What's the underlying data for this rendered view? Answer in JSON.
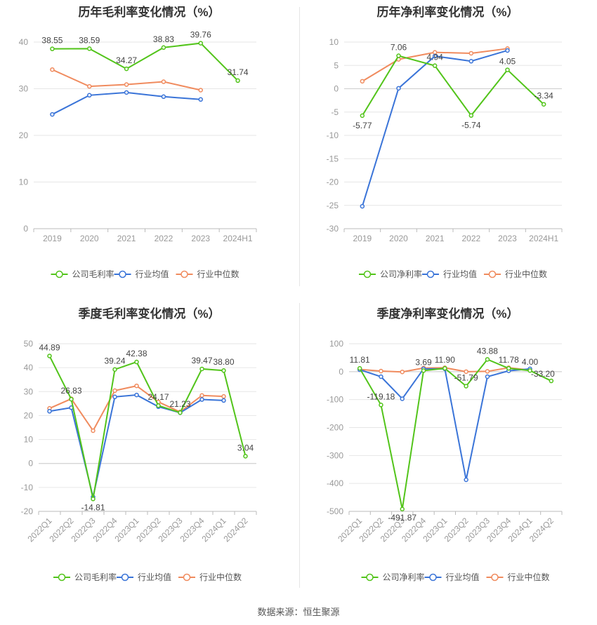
{
  "source_label": "数据来源：恒生聚源",
  "colors": {
    "company": "#52c41a",
    "industry_avg": "#3a74d8",
    "industry_median": "#f08b5e"
  },
  "chart_data": [
    {
      "type": "line",
      "title": "历年毛利率变化情况（%）",
      "categories": [
        "2019",
        "2020",
        "2021",
        "2022",
        "2023",
        "2024H1"
      ],
      "ylim": [
        0,
        40
      ],
      "yticks": [
        0,
        10,
        20,
        30,
        40
      ],
      "grid": true,
      "legend_position": "bottom",
      "rotate_xlabels": false,
      "series": [
        {
          "name": "公司毛利率",
          "values": [
            38.55,
            38.59,
            34.27,
            38.83,
            39.76,
            31.74
          ],
          "labels": [
            "38.55",
            "38.59",
            "34.27",
            "38.83",
            "39.76",
            "31.74"
          ]
        },
        {
          "name": "行业均值",
          "values": [
            24.5,
            28.6,
            29.2,
            28.3,
            27.7,
            null
          ]
        },
        {
          "name": "行业中位数",
          "values": [
            34.1,
            30.5,
            30.9,
            31.5,
            29.7,
            null
          ]
        }
      ]
    },
    {
      "type": "line",
      "title": "历年净利率变化情况（%）",
      "categories": [
        "2019",
        "2020",
        "2021",
        "2022",
        "2023",
        "2024H1"
      ],
      "ylim": [
        -30,
        10
      ],
      "yticks": [
        -30,
        -25,
        -20,
        -15,
        -10,
        -5,
        0,
        5,
        10
      ],
      "grid": true,
      "legend_position": "bottom",
      "rotate_xlabels": false,
      "series": [
        {
          "name": "公司净利率",
          "values": [
            -5.77,
            7.06,
            4.94,
            -5.74,
            4.05,
            -3.34
          ],
          "labels": [
            "-5.77",
            "7.06",
            "4.94",
            "-5.74",
            "4.05",
            "-3.34"
          ]
        },
        {
          "name": "行业均值",
          "values": [
            -25.2,
            0.1,
            7.0,
            5.9,
            8.2,
            null
          ]
        },
        {
          "name": "行业中位数",
          "values": [
            1.6,
            6.3,
            7.8,
            7.6,
            8.6,
            null
          ]
        }
      ]
    },
    {
      "type": "line",
      "title": "季度毛利率变化情况（%）",
      "categories": [
        "2022Q1",
        "2022Q2",
        "2022Q3",
        "2022Q4",
        "2023Q1",
        "2023Q2",
        "2023Q3",
        "2023Q4",
        "2024Q1",
        "2024Q2"
      ],
      "ylim": [
        -20,
        50
      ],
      "yticks": [
        -20,
        -10,
        0,
        10,
        20,
        30,
        40,
        50
      ],
      "grid": true,
      "legend_position": "bottom",
      "rotate_xlabels": true,
      "series": [
        {
          "name": "公司毛利率",
          "values": [
            44.89,
            26.83,
            -14.81,
            39.24,
            42.38,
            24.17,
            21.23,
            39.47,
            38.8,
            3.04
          ],
          "labels": [
            "44.89",
            "26.83",
            "-14.81",
            "39.24",
            "42.38",
            "24.17",
            "21.23",
            "39.47",
            "38.80",
            "3.04"
          ]
        },
        {
          "name": "行业均值",
          "values": [
            21.8,
            23.3,
            -14.0,
            27.8,
            28.6,
            23.7,
            21.2,
            26.7,
            26.3,
            null
          ]
        },
        {
          "name": "行业中位数",
          "values": [
            23.0,
            27.0,
            13.7,
            30.4,
            32.4,
            25.7,
            21.5,
            28.4,
            28.0,
            null
          ]
        }
      ]
    },
    {
      "type": "line",
      "title": "季度净利率变化情况（%）",
      "categories": [
        "2022Q1",
        "2022Q2",
        "2022Q3",
        "2022Q4",
        "2023Q1",
        "2023Q2",
        "2023Q3",
        "2023Q4",
        "2024Q1",
        "2024Q2"
      ],
      "ylim": [
        -500,
        100
      ],
      "yticks": [
        -500,
        -400,
        -300,
        -200,
        -100,
        0,
        100
      ],
      "grid": true,
      "legend_position": "bottom",
      "rotate_xlabels": true,
      "series": [
        {
          "name": "公司净利率",
          "values": [
            11.81,
            -119.18,
            -491.87,
            3.69,
            11.9,
            -51.79,
            43.88,
            11.78,
            4.0,
            -33.2
          ],
          "labels": [
            "11.81",
            "-119.18",
            "-491.87",
            "3.69",
            "11.90",
            "-51.79",
            "43.88",
            "11.78",
            "4.00",
            "-33.20"
          ]
        },
        {
          "name": "行业均值",
          "values": [
            7.0,
            -18.0,
            -97.0,
            10.0,
            10.0,
            -387.0,
            -18.0,
            3.0,
            10.0,
            null
          ]
        },
        {
          "name": "行业中位数",
          "values": [
            8.0,
            2.0,
            -1.0,
            13.0,
            14.0,
            0.0,
            1.0,
            14.0,
            6.0,
            null
          ]
        }
      ]
    }
  ]
}
